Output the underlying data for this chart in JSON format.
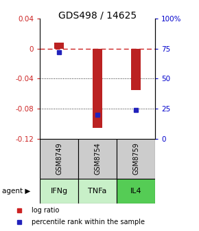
{
  "title": "GDS498 / 14625",
  "samples": [
    "GSM8749",
    "GSM8754",
    "GSM8759"
  ],
  "agents": [
    "IFNg",
    "TNFa",
    "IL4"
  ],
  "log_ratios": [
    0.008,
    -0.106,
    -0.055
  ],
  "percentile_ranks_pct": [
    0.72,
    0.2,
    0.24
  ],
  "ylim_left": [
    -0.12,
    0.04
  ],
  "ylim_right": [
    0.0,
    1.0
  ],
  "yticks_left": [
    0.04,
    0.0,
    -0.04,
    -0.08,
    -0.12
  ],
  "ytick_left_labels": [
    "0.04",
    "0",
    "-0.04",
    "-0.08",
    "-0.12"
  ],
  "yticks_right": [
    1.0,
    0.75,
    0.5,
    0.25,
    0.0
  ],
  "ytick_right_labels": [
    "100%",
    "75",
    "50",
    "25",
    "0"
  ],
  "bar_color": "#bb2222",
  "dot_color": "#2222bb",
  "dashed_line_color": "#cc2222",
  "grid_color": "#222222",
  "agent_colors": [
    "#c8f0c8",
    "#c8f0c8",
    "#55cc55"
  ],
  "sample_box_color": "#cccccc",
  "legend_log_color": "#cc2222",
  "legend_pct_color": "#2222bb",
  "bar_width": 0.25
}
